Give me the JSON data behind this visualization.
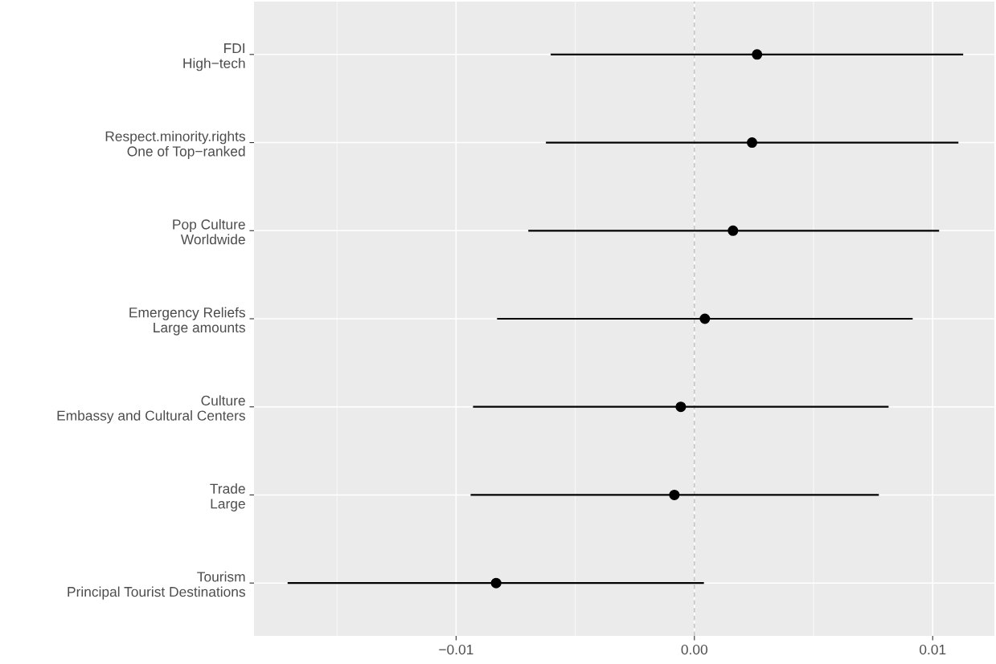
{
  "chart_data": {
    "type": "scatter",
    "orientation": "horizontal",
    "categories": [
      "FDI\nHigh−tech",
      "Respect.minority.rights\nOne of Top−ranked",
      "Pop Culture\nWorldwide",
      "Emergency Reliefs\nLarge amounts",
      "Culture\nEmbassy and Cultural Centers",
      "Trade\nLarge",
      "Tourism\nPrincipal Tourist Destinations"
    ],
    "values": [
      0.00263,
      0.00242,
      0.00162,
      0.00044,
      -0.00057,
      -0.00084,
      -0.00832
    ],
    "errors": [
      [
        -0.00603,
        0.01128
      ],
      [
        -0.00623,
        0.01108
      ],
      [
        -0.00697,
        0.01027
      ],
      [
        -0.00828,
        0.00916
      ],
      [
        -0.00929,
        0.00815
      ],
      [
        -0.00939,
        0.00774
      ],
      [
        -0.01707,
        0.0004
      ]
    ],
    "color": "#000000",
    "marker": "circle",
    "xlim": [
      -0.01848,
      0.01259
    ],
    "xticks": [
      {
        "value": -0.015,
        "label": null
      },
      {
        "value": -0.01,
        "label": "−0.01"
      },
      {
        "value": -0.005,
        "label": null
      },
      {
        "value": 0,
        "label": "0.00"
      },
      {
        "value": 0.005,
        "label": null
      },
      {
        "value": 0.01,
        "label": "0.01"
      }
    ],
    "grid": true,
    "ref_lines": [
      {
        "axis": "x",
        "value": 0,
        "label": null,
        "color": "#bdbdbd",
        "line_style": "dashed"
      }
    ]
  }
}
